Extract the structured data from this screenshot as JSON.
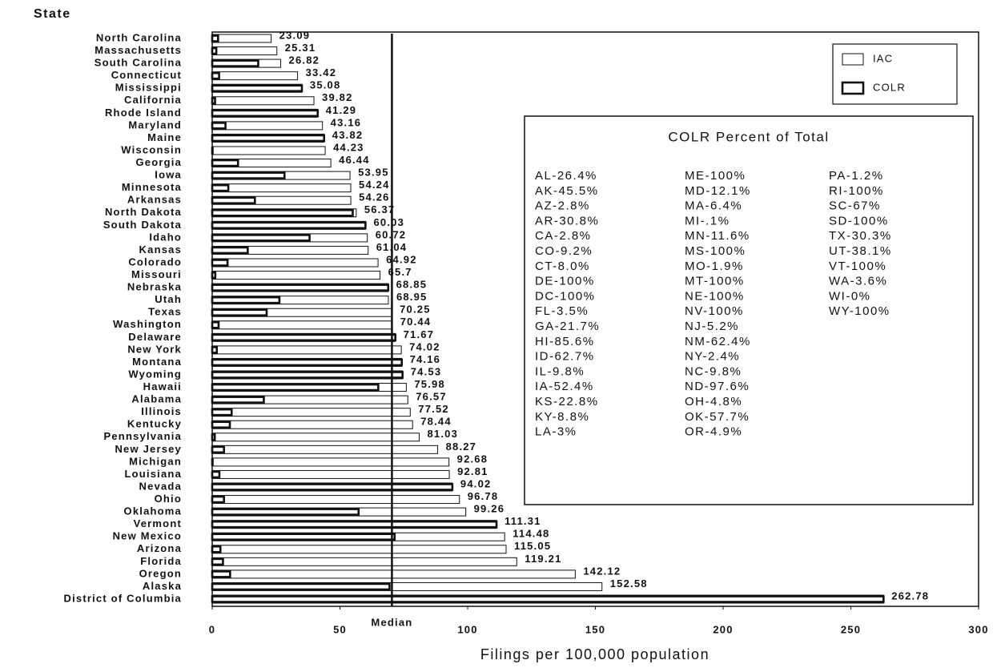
{
  "chart_data": {
    "type": "hbar_overlay",
    "y_axis_label": "State",
    "x_axis_label": "Filings per 100,000 population",
    "categories": [
      "North Carolina",
      "Massachusetts",
      "South Carolina",
      "Connecticut",
      "Mississippi",
      "California",
      "Rhode Island",
      "Maryland",
      "Maine",
      "Wisconsin",
      "Georgia",
      "Iowa",
      "Minnesota",
      "Arkansas",
      "North Dakota",
      "South Dakota",
      "Idaho",
      "Kansas",
      "Colorado",
      "Missouri",
      "Nebraska",
      "Utah",
      "Texas",
      "Washington",
      "Delaware",
      "New York",
      "Montana",
      "Wyoming",
      "Hawaii",
      "Alabama",
      "Illinois",
      "Kentucky",
      "Pennsylvania",
      "New Jersey",
      "Michigan",
      "Louisiana",
      "Nevada",
      "Ohio",
      "Oklahoma",
      "Vermont",
      "New Mexico",
      "Arizona",
      "Florida",
      "Oregon",
      "Alaska",
      "District of Columbia"
    ],
    "series": [
      {
        "name": "IAC",
        "color": "#ffffff",
        "labeled": true,
        "values": [
          23.09,
          25.31,
          26.82,
          33.42,
          35.08,
          39.82,
          41.29,
          43.16,
          43.82,
          44.23,
          46.44,
          53.95,
          54.24,
          54.26,
          56.37,
          60.03,
          60.72,
          61.04,
          64.92,
          65.7,
          68.85,
          68.95,
          70.25,
          70.44,
          71.67,
          74.02,
          74.16,
          74.53,
          75.98,
          76.57,
          77.52,
          78.44,
          81.03,
          88.27,
          92.68,
          92.81,
          94.02,
          96.78,
          99.26,
          111.31,
          114.48,
          115.05,
          119.21,
          142.12,
          152.58,
          262.78
        ]
      },
      {
        "name": "COLR",
        "color": "#ffffff",
        "labeled": false,
        "values": [
          2.3,
          1.6,
          18.0,
          2.7,
          35.1,
          1.1,
          41.3,
          5.2,
          43.8,
          0,
          10.1,
          28.3,
          6.3,
          16.7,
          55.0,
          60.0,
          38.1,
          13.9,
          6.0,
          1.2,
          68.9,
          26.3,
          21.3,
          2.5,
          71.7,
          1.8,
          74.2,
          74.5,
          65.0,
          20.2,
          7.6,
          6.9,
          1.0,
          4.6,
          0.1,
          2.8,
          94.0,
          4.6,
          57.3,
          111.3,
          71.4,
          3.2,
          4.2,
          7.0,
          69.4,
          262.8
        ]
      }
    ],
    "xlim": [
      0,
      300
    ],
    "xticks": [
      0,
      50,
      100,
      150,
      200,
      250,
      300
    ],
    "median": {
      "label": "Median",
      "value": 70.35
    },
    "legend": "upper right",
    "inset": {
      "title": "COLR Percent of Total",
      "columns": [
        [
          "AL-26.4%",
          "AK-45.5%",
          "AZ-2.8%",
          "AR-30.8%",
          "CA-2.8%",
          "CO-9.2%",
          "CT-8.0%",
          "DE-100%",
          "DC-100%",
          "FL-3.5%",
          "GA-21.7%",
          "HI-85.6%",
          "ID-62.7%",
          "IL-9.8%",
          "IA-52.4%",
          "KS-22.8%",
          "KY-8.8%",
          "LA-3%"
        ],
        [
          "ME-100%",
          "MD-12.1%",
          "MA-6.4%",
          "MI-.1%",
          "MN-11.6%",
          "MS-100%",
          "MO-1.9%",
          "MT-100%",
          "NE-100%",
          "NV-100%",
          "NJ-5.2%",
          "NM-62.4%",
          "NY-2.4%",
          "NC-9.8%",
          "ND-97.6%",
          "OH-4.8%",
          "OK-57.7%",
          "OR-4.9%"
        ],
        [
          "PA-1.2%",
          "RI-100%",
          "SC-67%",
          "SD-100%",
          "TX-30.3%",
          "UT-38.1%",
          "VT-100%",
          "WA-3.6%",
          "WI-0%",
          "WY-100%"
        ]
      ]
    }
  }
}
